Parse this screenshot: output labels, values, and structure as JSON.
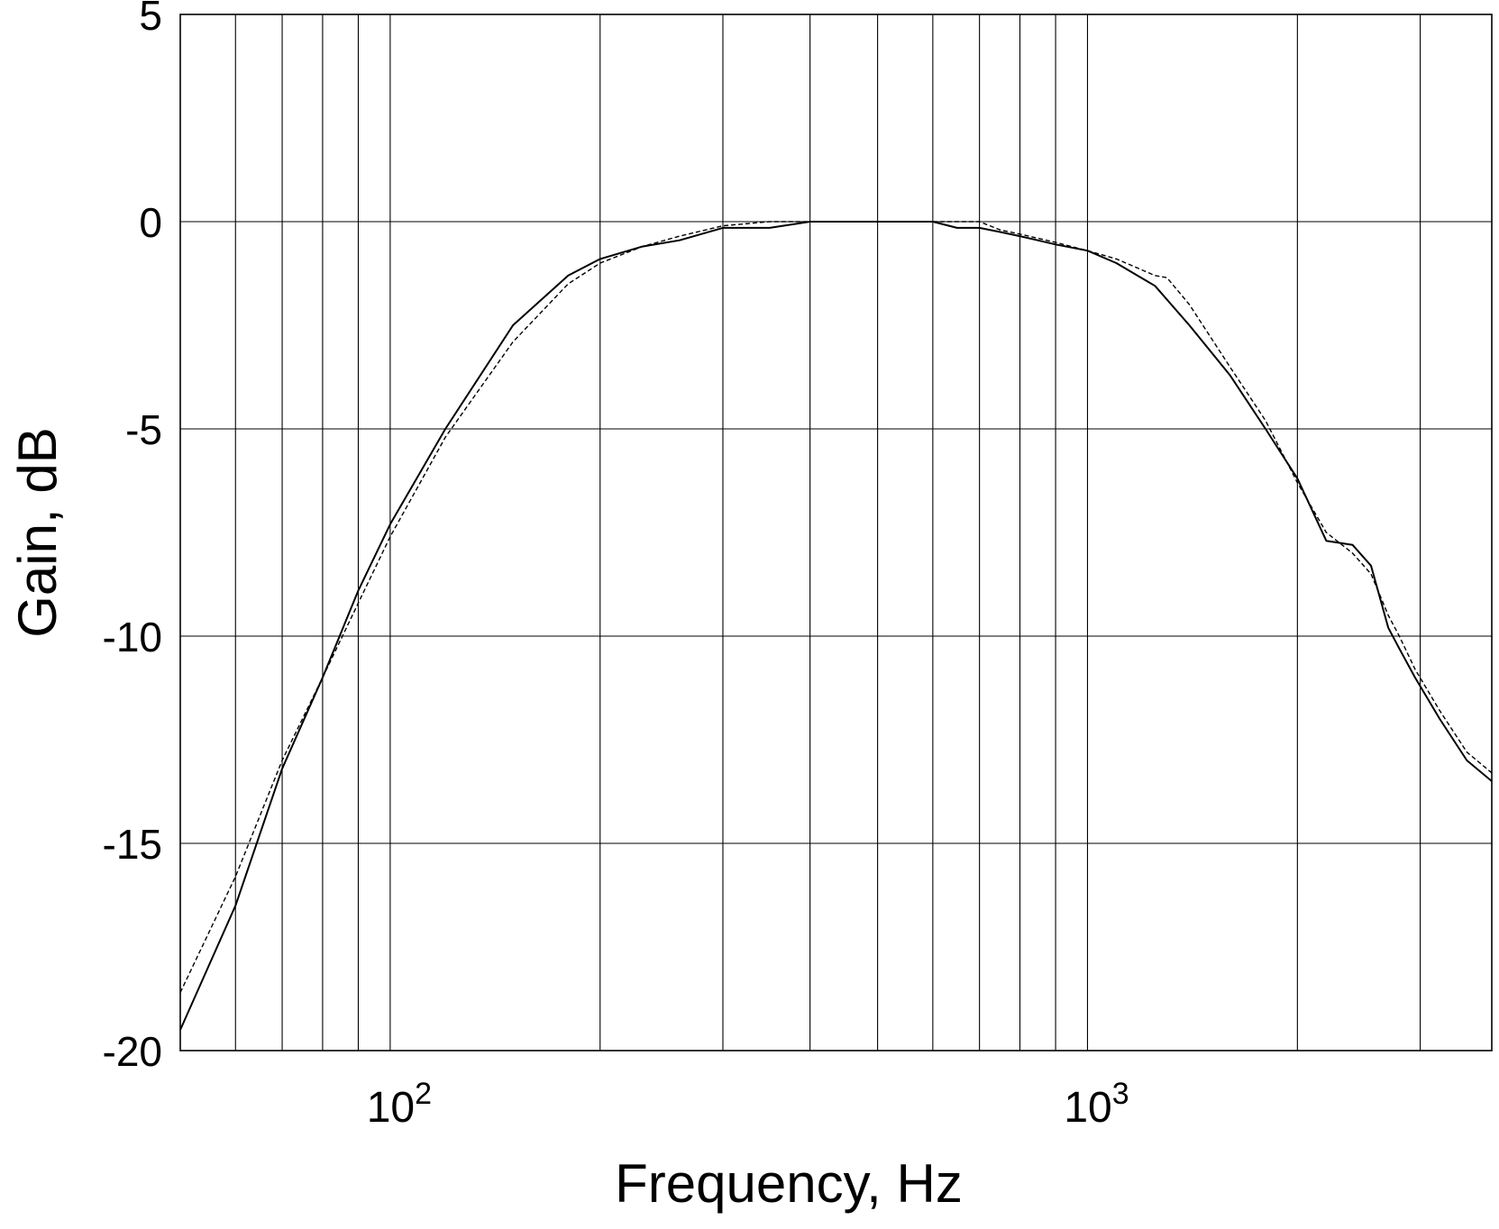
{
  "chart_data": {
    "type": "line",
    "title": "",
    "xlabel": "Frequency, Hz",
    "ylabel": "Gain, dB",
    "xscale": "log",
    "xlim": [
      50,
      3800
    ],
    "ylim": [
      -20,
      5
    ],
    "grid": true,
    "legend": "none",
    "colors": {
      "line": "#000000",
      "grid": "#000000",
      "background": "#ffffff"
    },
    "y_ticks": [
      {
        "value": 5,
        "label": "5"
      },
      {
        "value": 0,
        "label": "0"
      },
      {
        "value": -5,
        "label": "-5"
      },
      {
        "value": -10,
        "label": "-10"
      },
      {
        "value": -15,
        "label": "-15"
      },
      {
        "value": -20,
        "label": "-20"
      }
    ],
    "x_ticks": [
      {
        "value": 100,
        "base": "10",
        "exp": "2"
      },
      {
        "value": 1000,
        "base": "10",
        "exp": "3"
      }
    ],
    "x_grid_values": [
      60,
      70,
      80,
      90,
      100,
      200,
      300,
      400,
      500,
      600,
      700,
      800,
      900,
      1000,
      2000,
      3000
    ],
    "y_grid_values": [
      5,
      0,
      -5,
      -10,
      -15,
      -20
    ],
    "series": [
      {
        "style": "solid",
        "x": [
          50,
          60,
          70,
          80,
          90,
          100,
          120,
          150,
          180,
          200,
          230,
          260,
          300,
          350,
          400,
          500,
          600,
          650,
          700,
          750,
          800,
          900,
          1000,
          1100,
          1250,
          1400,
          1600,
          1800,
          2000,
          2200,
          2400,
          2550,
          2700,
          2800,
          2950,
          3200,
          3500,
          3800
        ],
        "y": [
          -19.5,
          -16.5,
          -13.2,
          -11.0,
          -8.9,
          -7.3,
          -5.0,
          -2.5,
          -1.3,
          -0.9,
          -0.6,
          -0.45,
          -0.15,
          -0.15,
          0.0,
          0.0,
          0.0,
          -0.15,
          -0.15,
          -0.25,
          -0.35,
          -0.55,
          -0.7,
          -1.0,
          -1.55,
          -2.5,
          -3.7,
          -5.0,
          -6.2,
          -7.7,
          -7.8,
          -8.3,
          -9.8,
          -10.3,
          -11.0,
          -12.0,
          -13.0,
          -13.5
        ]
      },
      {
        "style": "dashed",
        "x": [
          50,
          60,
          70,
          80,
          90,
          100,
          120,
          150,
          180,
          200,
          230,
          260,
          300,
          350,
          400,
          500,
          600,
          650,
          700,
          750,
          800,
          900,
          1000,
          1100,
          1250,
          1300,
          1400,
          1600,
          1800,
          2000,
          2200,
          2400,
          2550,
          2700,
          2800,
          2950,
          3200,
          3500,
          3800
        ],
        "y": [
          -18.6,
          -15.8,
          -13.0,
          -11.0,
          -9.2,
          -7.6,
          -5.2,
          -2.9,
          -1.5,
          -1.0,
          -0.6,
          -0.35,
          -0.1,
          0.0,
          0.0,
          0.0,
          0.0,
          0.0,
          0.0,
          -0.2,
          -0.3,
          -0.5,
          -0.7,
          -0.9,
          -1.3,
          -1.35,
          -2.0,
          -3.5,
          -4.8,
          -6.3,
          -7.5,
          -8.0,
          -8.5,
          -9.5,
          -10.0,
          -10.8,
          -11.8,
          -12.8,
          -13.3
        ]
      }
    ]
  }
}
